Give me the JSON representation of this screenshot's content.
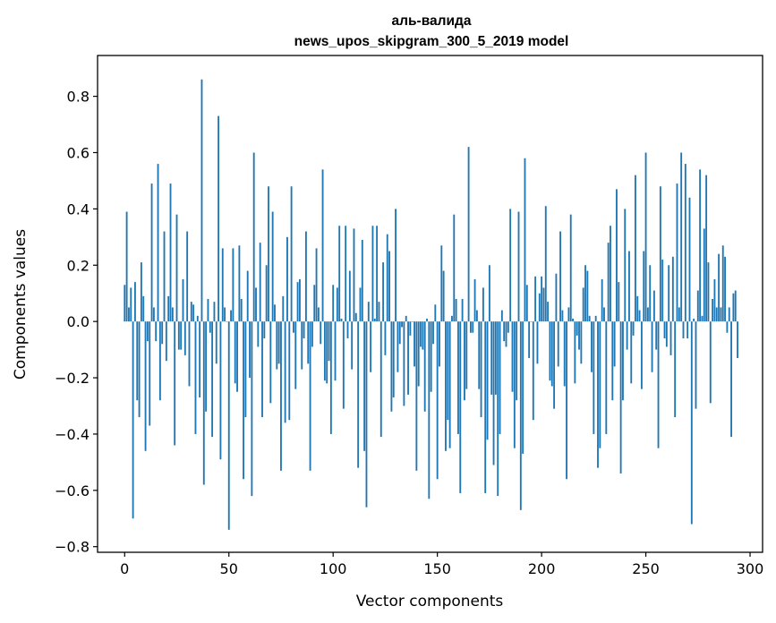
{
  "chart_data": {
    "type": "bar",
    "title": "аль-валида",
    "subtitle": "news_upos_skipgram_300_5_2019 model",
    "xlabel": "Vector components",
    "ylabel": "Components values",
    "xlim": [
      -13,
      306
    ],
    "ylim": [
      -0.82,
      0.945
    ],
    "xticks": [
      0,
      50,
      100,
      150,
      200,
      250,
      300
    ],
    "xtick_labels": [
      "0",
      "50",
      "100",
      "150",
      "200",
      "250",
      "300"
    ],
    "yticks": [
      -0.8,
      -0.6,
      -0.4,
      -0.2,
      0.0,
      0.2,
      0.4,
      0.6,
      0.8
    ],
    "ytick_labels": [
      "−0.8",
      "−0.6",
      "−0.4",
      "−0.2",
      "0.0",
      "0.2",
      "0.4",
      "0.6",
      "0.8"
    ],
    "grid": false,
    "bar_color": "#1f77b4",
    "x_start": 0,
    "values": [
      0.13,
      0.39,
      0.05,
      0.12,
      -0.7,
      0.14,
      -0.28,
      -0.34,
      0.21,
      0.09,
      -0.46,
      -0.07,
      -0.37,
      0.49,
      0.05,
      -0.07,
      0.56,
      -0.28,
      -0.08,
      0.32,
      -0.14,
      0.09,
      0.49,
      0.05,
      -0.44,
      0.38,
      -0.1,
      -0.1,
      0.15,
      -0.12,
      0.32,
      -0.23,
      0.07,
      0.06,
      -0.4,
      0.02,
      -0.27,
      0.86,
      -0.58,
      -0.32,
      0.08,
      -0.04,
      -0.41,
      0.07,
      -0.15,
      0.73,
      -0.49,
      0.26,
      0.05,
      0.0,
      -0.74,
      0.04,
      0.26,
      -0.22,
      -0.25,
      0.27,
      0.08,
      -0.56,
      -0.34,
      0.18,
      -0.2,
      -0.62,
      0.6,
      0.12,
      -0.09,
      0.28,
      -0.34,
      -0.06,
      0.2,
      0.48,
      -0.29,
      0.39,
      0.06,
      -0.17,
      -0.15,
      -0.53,
      0.09,
      -0.36,
      0.3,
      -0.35,
      0.48,
      -0.04,
      -0.24,
      0.14,
      0.15,
      -0.17,
      -0.06,
      0.32,
      -0.15,
      -0.53,
      -0.09,
      0.13,
      0.26,
      0.05,
      -0.08,
      0.54,
      -0.21,
      -0.22,
      -0.14,
      -0.4,
      0.13,
      -0.21,
      0.12,
      0.34,
      0.01,
      -0.31,
      0.34,
      -0.06,
      0.18,
      -0.17,
      0.33,
      0.03,
      -0.52,
      0.12,
      0.29,
      -0.46,
      -0.66,
      0.07,
      -0.18,
      0.34,
      0.01,
      0.34,
      0.07,
      -0.41,
      0.21,
      -0.12,
      0.31,
      0.25,
      -0.32,
      -0.27,
      0.4,
      -0.18,
      -0.08,
      -0.02,
      -0.3,
      0.02,
      -0.26,
      -0.05,
      0.0,
      -0.16,
      -0.53,
      -0.23,
      -0.09,
      -0.1,
      -0.32,
      0.01,
      -0.63,
      -0.25,
      -0.08,
      0.06,
      -0.56,
      -0.16,
      0.27,
      0.18,
      -0.46,
      -0.35,
      -0.45,
      0.02,
      0.38,
      0.08,
      -0.4,
      -0.61,
      0.08,
      -0.28,
      -0.24,
      0.62,
      -0.04,
      -0.04,
      0.15,
      0.04,
      -0.24,
      -0.34,
      0.12,
      -0.61,
      -0.42,
      0.2,
      -0.26,
      -0.51,
      -0.26,
      -0.62,
      -0.4,
      0.04,
      -0.07,
      -0.09,
      -0.04,
      0.4,
      -0.25,
      -0.45,
      -0.28,
      0.39,
      -0.67,
      -0.47,
      0.58,
      0.13,
      -0.13,
      0.0,
      -0.35,
      0.16,
      -0.15,
      0.1,
      0.16,
      0.12,
      0.41,
      0.07,
      -0.21,
      -0.23,
      -0.31,
      0.17,
      -0.16,
      0.32,
      0.04,
      -0.23,
      -0.56,
      0.05,
      0.38,
      0.01,
      -0.22,
      -0.05,
      -0.1,
      -0.15,
      0.12,
      0.2,
      0.18,
      0.02,
      -0.18,
      -0.4,
      0.02,
      -0.52,
      -0.45,
      0.15,
      0.05,
      -0.4,
      0.28,
      0.34,
      -0.28,
      -0.16,
      0.47,
      0.14,
      -0.54,
      -0.28,
      0.4,
      -0.1,
      0.25,
      -0.22,
      -0.05,
      0.52,
      0.09,
      0.04,
      -0.24,
      0.25,
      0.6,
      0.05,
      0.2,
      -0.18,
      0.11,
      -0.1,
      -0.45,
      0.48,
      0.22,
      -0.06,
      -0.09,
      0.2,
      -0.12,
      0.23,
      -0.34,
      0.49,
      0.05,
      0.6,
      -0.06,
      0.56,
      -0.06,
      0.44,
      -0.72,
      0.01,
      -0.31,
      0.11,
      0.54,
      0.02,
      0.33,
      0.52,
      0.21,
      -0.29,
      0.08,
      0.15,
      0.05,
      0.24,
      0.05,
      0.27,
      0.23,
      -0.04,
      0.05,
      -0.41,
      0.1,
      0.11,
      -0.13
    ]
  }
}
